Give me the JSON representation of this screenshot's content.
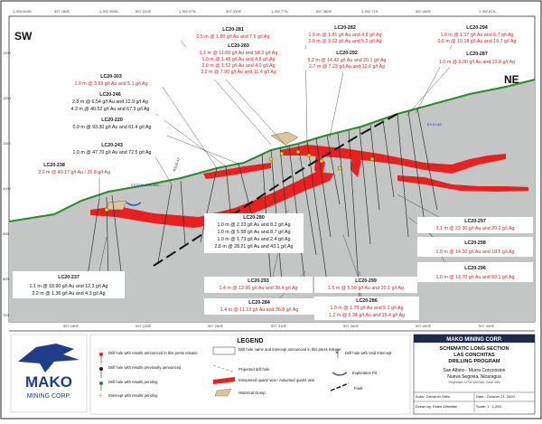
{
  "map": {
    "direction_left": "SW",
    "direction_right": "NE",
    "top_coords": [
      "1,393.063N",
      "597.180E",
      "1,392.990N",
      "597.220E",
      "1,392.97N",
      "597.310E",
      "1,392.77N",
      "597.360E",
      "1,392.71N",
      "597.400E",
      "1,392.81N"
    ],
    "bottom_coords": [
      "597.180E",
      "597.220E",
      "597.260E",
      "597.310E",
      "597.360E",
      "597.400E",
      "597.440E"
    ],
    "elevation_labels": [
      "1300",
      "1200",
      "1100",
      "1000",
      "900",
      "800",
      "700"
    ],
    "named_points": {
      "rs_label": "RS16-47",
      "ex_pit": "EX2020-R0SAB0...",
      "ex_pit2": "EX12-43"
    }
  },
  "holes": [
    {
      "id": "LC20-281",
      "lines": [
        "0.5 m @ 1.80 g/t Au and 7.6 g/t Ag"
      ]
    },
    {
      "id": "LC20-283",
      "lines": [
        "1.1 m @ 11.65 g/t Au and 54.3 g/t Ag",
        "1.0 m @ 1.48 g/t Au and 4.8 g/t Ag",
        "2.0 m @ 1.52 g/t Au and 4.0 g/t Ag",
        "3.2 m @ 7.90 g/t Au and 11.4 g/t Ag"
      ]
    },
    {
      "id": "LC20-282",
      "lines": [
        "1.0 m @ 1.81 g/t Au and 4.8 g/t Ag",
        "2.0 m @ 3.02 g/t Au and 5.2 g/t Ag"
      ]
    },
    {
      "id": "LC20-294",
      "lines": [
        "1.0 m @ 1.17 g/t Au and 6.7 g/t Ag",
        "0.6 m @ 10.18 g/t Au and 19.7 g/t Ag"
      ]
    },
    {
      "id": "LC20-287",
      "lines": [
        "1.0 m @ 9.00 g/t Au and 13.8 g/t Ag"
      ]
    },
    {
      "id": "LC20-292",
      "lines": [
        "5.2 m @ 14.42 g/t Au and 20.1 g/t Ag",
        "2.7 m @ 7.23 g/t Au and 12.6 g/t Ag"
      ]
    },
    {
      "id": "LC20-303",
      "lines": [
        "1.0 m @ 3.59 g/t Au and 5.1 g/t Ag"
      ]
    },
    {
      "id": "LC20-246",
      "lines": [
        "2.8 m @ 6.54 g/t Au and 12.9 g/t Ag",
        "4.3 m @ 40.52 g/t Au and 67.3 g/t Ag"
      ]
    },
    {
      "id": "LC20-220",
      "lines": [
        "0.9 m @ 93.30 g/t Au and 61.4 g/t Ag"
      ]
    },
    {
      "id": "LC20-243",
      "lines": [
        "1.0 m @ 47.70 g/t Au and 72.5 g/t Ag"
      ]
    },
    {
      "id": "LC20-238",
      "lines": [
        "2.0 m @ 40.17 g/t Au / 26.8 g/t Ag"
      ]
    },
    {
      "id": "LC20-280",
      "lines": [
        "1.0 m @ 2.23 g/t Au and 8.2 g/t Ag",
        "1.0 m @ 5.58 g/t Au and 8.7 g/t Ag",
        "1.0 m @ 1.73 g/t Au and 2.4 g/t Ag",
        "2.8 m @ 28.21 g/t Au and 43.1 g/t Ag"
      ]
    },
    {
      "id": "LC20-297",
      "lines": [
        "3.1 m @ 22.30 g/t Au and 20.0 g/t Ag"
      ]
    },
    {
      "id": "LC20-298",
      "lines": [
        "1.0 m @ 14.30 g/t Au and 18.5 g/t Ag"
      ]
    },
    {
      "id": "LC20-296",
      "lines": [
        "1.0 m @ 12.70 g/t Au and 59.1 g/t Ag"
      ]
    },
    {
      "id": "LC20-237",
      "lines": [
        "1.1 m @ 18.90 g/t Au and 12.3 g/t Ag",
        "2.2 m @ 1.36 g/t Au and 4.3 g/t Ag"
      ]
    },
    {
      "id": "LC20-293",
      "lines": [
        "1.4 m @ 12.95 g/t Au and 30.4 g/t Ag"
      ]
    },
    {
      "id": "LC20-299",
      "lines": [
        "1.5 m @ 5.59 g/t Au and 20.1 g/t Ag"
      ]
    },
    {
      "id": "LC20-284",
      "lines": [
        "1.4 m @ 11.13 g/t Au and 36.8 g/t Ag"
      ]
    },
    {
      "id": "LC20-286",
      "lines": [
        "1.0 m @ 1.70 g/t Au and 5.1 g/t Ag",
        "1.2 m @ 5.34 g/t Au and 15.4 g/t Ag"
      ]
    }
  ],
  "legend": {
    "title": "LEGEND",
    "items": [
      "Drill hole with results announced in this press release",
      "Drill hole with results previously announced",
      "Drill hole with results pending",
      "Intercept with results pending",
      "Drill hole name and intercept announced in this press release",
      "Projected drill hole",
      "Interpreted quartz vein / Assumed quartz vein",
      "Historical Dump",
      "Drill hole with Void intercept",
      "Exploration Pit",
      "Fault"
    ]
  },
  "logo": {
    "name": "MAKO",
    "sub": "MINING CORP."
  },
  "title_block": {
    "company": "MAKO MINING CORP.",
    "title1": "SCHEMATIC LONG SECTION",
    "title2": "LAS CONCHITAS",
    "title3": "DRILLING PROGRAM",
    "concession": "San Albino - Murra Concession",
    "location": "Nueva Segovia, Nicaragua",
    "projection": "Projection: UTM WGS84, Zone 16N",
    "author": "Autor: Geosinet Grillo",
    "date": "Date : October 21, 2020",
    "drawn": "Drawn by: Esteé Zelwiitan",
    "scale": "Scale: 1 : 1,250"
  },
  "colors": {
    "vein": "#e8201f",
    "ground": "#2b8a2b",
    "fault": "#111111",
    "section": "#bfc0c0",
    "label_red": "#d8261f"
  }
}
